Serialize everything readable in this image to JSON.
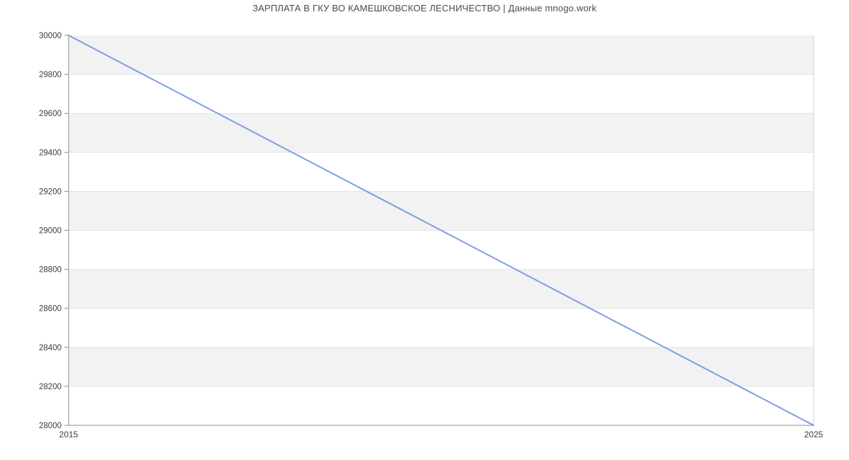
{
  "chart_data": {
    "type": "line",
    "title": "ЗАРПЛАТА В ГКУ ВО КАМЕШКОВСКОЕ ЛЕСНИЧЕСТВО | Данные mnogo.work",
    "series": [
      {
        "name": "salary",
        "points": [
          {
            "x": 2015,
            "y": 30000
          },
          {
            "x": 2025,
            "y": 28000
          }
        ]
      }
    ],
    "xlabel": "",
    "ylabel": "",
    "xlim": [
      2015,
      2025
    ],
    "ylim": [
      28000,
      30000
    ],
    "xticks": [
      2015,
      2025
    ],
    "yticks": [
      28000,
      28200,
      28400,
      28600,
      28800,
      29000,
      29200,
      29400,
      29600,
      29800,
      30000
    ],
    "legend": "none",
    "grid": "horizontal-bands",
    "colors": {
      "line": "#7d9fe3",
      "band_gray": "#f2f2f2",
      "band_white": "#ffffff",
      "gridline": "#e4e4e4",
      "axis": "#8c8c8c",
      "right_border": "#e0e0e0",
      "tick_label": "#3c3c3c",
      "title_text": "#4a4a4a"
    }
  },
  "layout_note": "salary trend line chart, values decrease linearly 30000 to 28000 between 2015 and 2025"
}
